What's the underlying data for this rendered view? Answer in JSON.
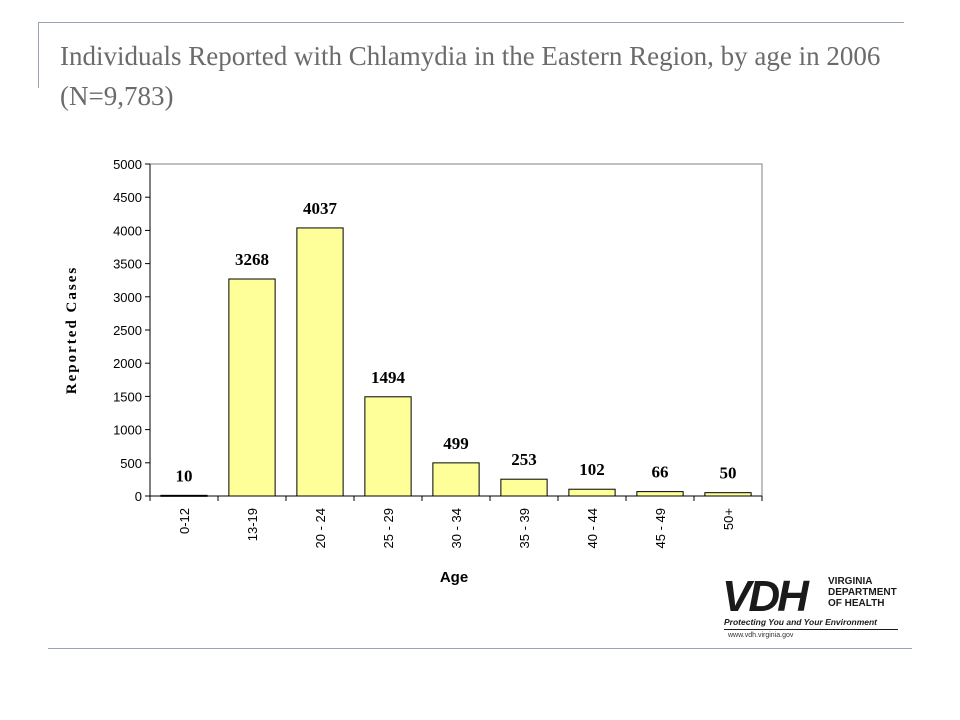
{
  "slide": {
    "title": "Individuals Reported with Chlamydia in the Eastern Region, by age in 2006 (N=9,783)"
  },
  "chart_data": {
    "type": "bar",
    "categories": [
      "0-12",
      "13-19",
      "20 - 24",
      "25 - 29",
      "30 - 34",
      "35 - 39",
      "40 - 44",
      "45 - 49",
      "50+"
    ],
    "values": [
      10,
      3268,
      4037,
      1494,
      499,
      253,
      102,
      66,
      50
    ],
    "data_labels": [
      "10",
      "3268",
      "4037",
      "1494",
      "499",
      "253",
      "102",
      "66",
      "50"
    ],
    "y_ticks": [
      "0",
      "500",
      "1000",
      "1500",
      "2000",
      "2500",
      "3000",
      "3500",
      "4000",
      "4500",
      "5000"
    ],
    "xlabel": "Age",
    "ylabel": "Reported Cases",
    "ylim": [
      0,
      5000
    ],
    "grid": false,
    "bar_color": "#ffff99",
    "bar_edge_color": "#000000"
  },
  "logo": {
    "mark": "VDH",
    "dept_line1": "VIRGINIA",
    "dept_line2": "DEPARTMENT",
    "dept_line3": "OF HEALTH",
    "tagline": "Protecting You and Your Environment",
    "url": "www.vdh.virginia.gov"
  }
}
